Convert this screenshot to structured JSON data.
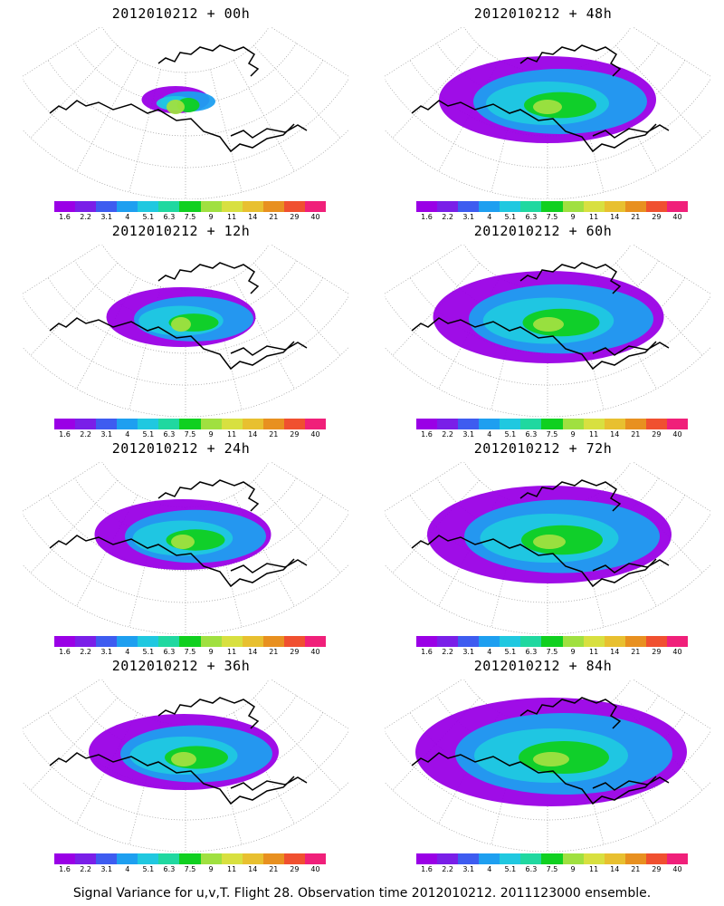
{
  "panels": [
    {
      "title": "2012010212 + 00h",
      "spread": 0.25
    },
    {
      "title": "2012010212 + 48h",
      "spread": 0.8
    },
    {
      "title": "2012010212 + 12h",
      "spread": 0.55
    },
    {
      "title": "2012010212 + 60h",
      "spread": 0.85
    },
    {
      "title": "2012010212 + 24h",
      "spread": 0.65
    },
    {
      "title": "2012010212 + 72h",
      "spread": 0.9
    },
    {
      "title": "2012010212 + 36h",
      "spread": 0.7
    },
    {
      "title": "2012010212 + 84h",
      "spread": 1.0
    }
  ],
  "colorbar": {
    "labels": [
      "1.6",
      "2.2",
      "3.1",
      "4",
      "5.1",
      "6.3",
      "7.5",
      "9",
      "11",
      "14",
      "21",
      "29",
      "40"
    ],
    "colors": [
      "#9a00e6",
      "#7a1fe8",
      "#3e5cf0",
      "#1e9ff0",
      "#20c8e0",
      "#20d8a0",
      "#10d020",
      "#a0e040",
      "#d8e040",
      "#e8c030",
      "#e89020",
      "#f05030",
      "#f0207a"
    ]
  },
  "caption": "Signal Variance for u,v,T. Flight 28. Observation time 2012010212. 2011123000 ensemble."
}
